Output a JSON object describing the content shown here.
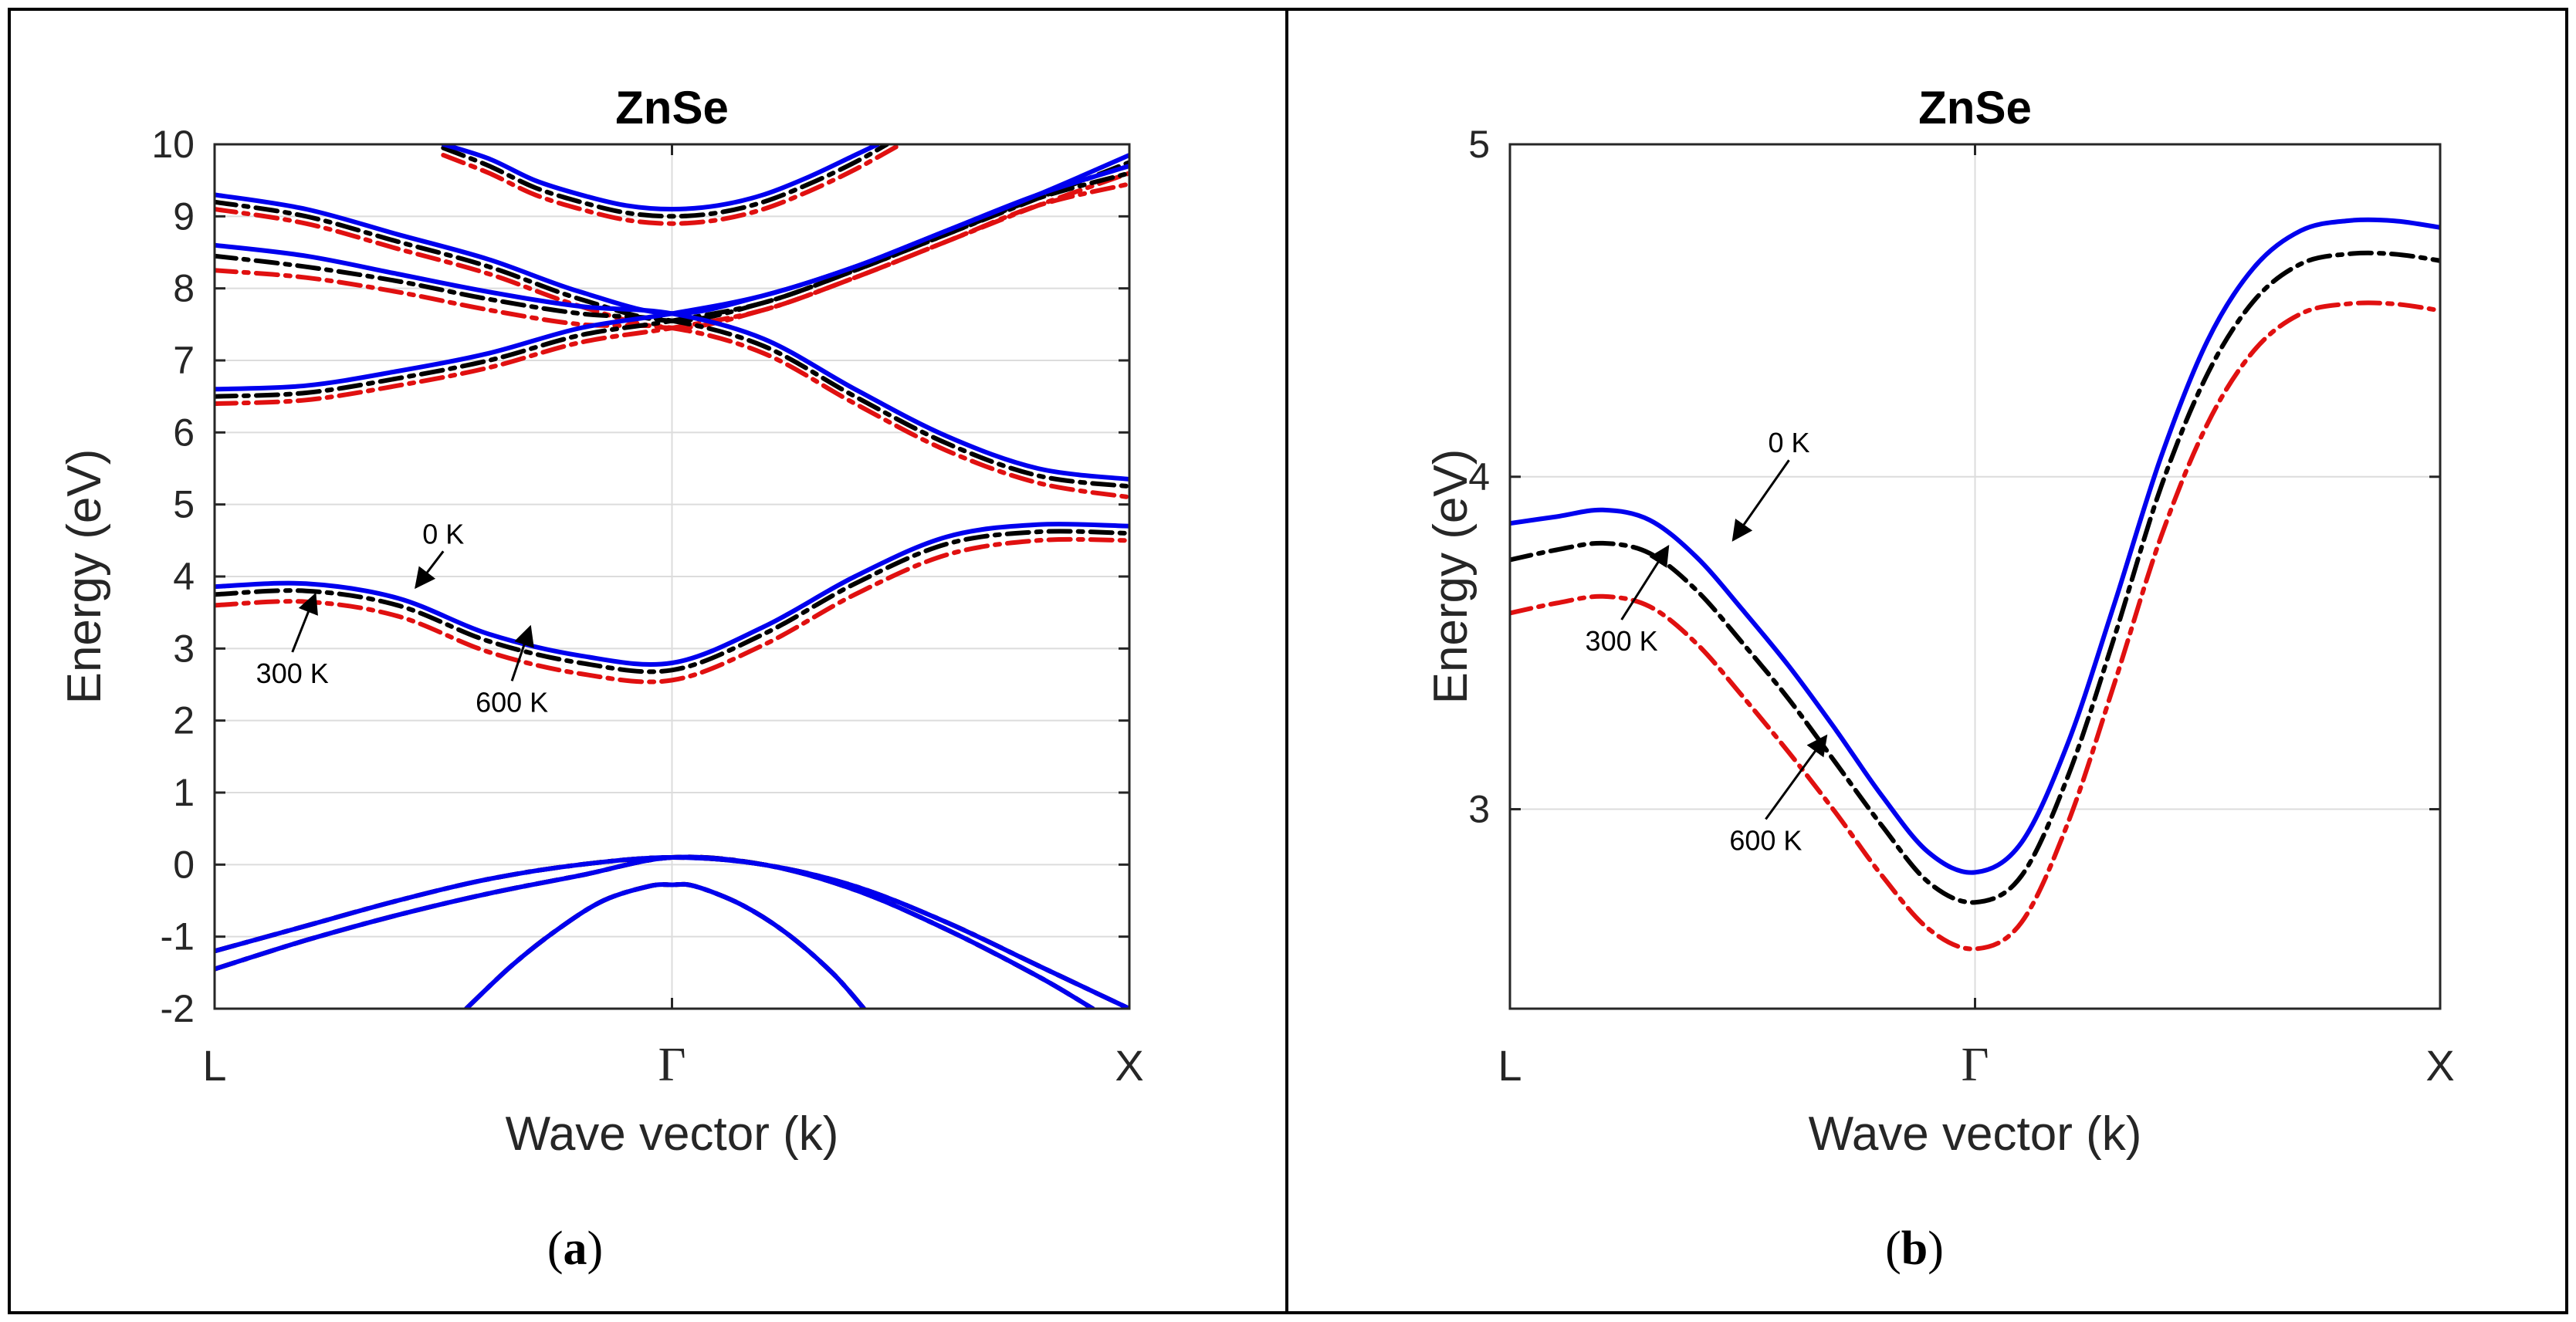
{
  "panels": [
    {
      "id": "a",
      "caption": {
        "open": "(",
        "letter": "a",
        "close": ")"
      },
      "xlabel": "Wave vector (k)"
    },
    {
      "id": "b",
      "caption": {
        "open": "(",
        "letter": "b",
        "close": ")"
      },
      "xlabel": "Wave vector (k)"
    }
  ],
  "colors": {
    "t0": "#0000ee",
    "t300": "#000000",
    "t600": "#e01010",
    "grid": "#dcdcdc",
    "axis": "#262626"
  },
  "chart_data": [
    {
      "type": "line",
      "title": "ZnSe",
      "xlabel": "Wave vector (k)",
      "ylabel": "Energy (eV)",
      "xlim": [
        0,
        2
      ],
      "ylim": [
        -2,
        10
      ],
      "xticks": [
        0,
        1,
        2
      ],
      "xticklabels": [
        "L",
        "Γ",
        "X"
      ],
      "yticks": [
        -2,
        -1,
        0,
        1,
        2,
        3,
        4,
        5,
        6,
        7,
        8,
        9,
        10
      ],
      "yticklabels": [
        "-2",
        "-1",
        "0",
        "1",
        "2",
        "3",
        "4",
        "5",
        "6",
        "7",
        "8",
        "9",
        "10"
      ],
      "grid": true,
      "series": [
        {
          "name": "0 K",
          "bands": [
            {
              "x": [
                0,
                0.2,
                0.4,
                0.6,
                0.8,
                1.0,
                1.2,
                1.4,
                1.6,
                1.8,
                2.0
              ],
              "y": [
                3.86,
                3.9,
                3.7,
                3.2,
                2.9,
                2.8,
                3.3,
                4.0,
                4.55,
                4.72,
                4.7
              ]
            },
            {
              "x": [
                0,
                0.2,
                0.4,
                0.6,
                0.8,
                1.0,
                1.2,
                1.4,
                1.6,
                1.8,
                2.0
              ],
              "y": [
                6.6,
                6.65,
                6.85,
                7.1,
                7.45,
                7.65,
                7.9,
                8.3,
                8.8,
                9.3,
                9.85
              ]
            },
            {
              "x": [
                0,
                0.2,
                0.4,
                0.6,
                0.8,
                1.0,
                1.2,
                1.4,
                1.6,
                1.8,
                2.0
              ],
              "y": [
                8.6,
                8.45,
                8.2,
                7.95,
                7.75,
                7.65,
                7.3,
                6.6,
                5.95,
                5.5,
                5.35
              ]
            },
            {
              "x": [
                0,
                0.2,
                0.4,
                0.6,
                0.8,
                1.0,
                1.2,
                1.4,
                1.6,
                1.8,
                2.0
              ],
              "y": [
                9.3,
                9.1,
                8.75,
                8.4,
                7.95,
                7.65,
                7.9,
                8.3,
                8.8,
                9.3,
                9.7
              ]
            },
            {
              "x": [
                0.5,
                0.6,
                0.7,
                0.8,
                0.9,
                1.0,
                1.1,
                1.2,
                1.3,
                1.4,
                1.45
              ],
              "y": [
                10.0,
                9.8,
                9.5,
                9.3,
                9.15,
                9.1,
                9.15,
                9.3,
                9.55,
                9.85,
                10.0
              ]
            },
            {
              "x": [
                0,
                0.2,
                0.4,
                0.6,
                0.8,
                1.0,
                1.2,
                1.4,
                1.6,
                1.8,
                2.0
              ],
              "y": [
                -1.2,
                -0.85,
                -0.5,
                -0.2,
                0.0,
                0.1,
                0.0,
                -0.3,
                -0.8,
                -1.4,
                -2.0
              ]
            },
            {
              "x": [
                0,
                0.2,
                0.4,
                0.6,
                0.8,
                1.0,
                1.2,
                1.4,
                1.6,
                1.8,
                1.92
              ],
              "y": [
                -1.45,
                -1.05,
                -0.7,
                -0.4,
                -0.15,
                0.1,
                0.0,
                -0.35,
                -0.9,
                -1.55,
                -2.0
              ]
            },
            {
              "x": [
                0.55,
                0.65,
                0.75,
                0.85,
                0.95,
                1.0,
                1.05,
                1.15,
                1.25,
                1.35,
                1.42
              ],
              "y": [
                -2.0,
                -1.4,
                -0.9,
                -0.5,
                -0.3,
                -0.28,
                -0.3,
                -0.55,
                -0.95,
                -1.5,
                -2.0
              ]
            }
          ]
        },
        {
          "name": "300 K",
          "bands": [
            {
              "x": [
                0,
                0.2,
                0.4,
                0.6,
                0.8,
                1.0,
                1.2,
                1.4,
                1.6,
                1.8,
                2.0
              ],
              "y": [
                3.75,
                3.8,
                3.6,
                3.1,
                2.8,
                2.7,
                3.2,
                3.9,
                4.45,
                4.62,
                4.6
              ]
            },
            {
              "x": [
                0,
                0.2,
                0.4,
                0.6,
                0.8,
                1.0,
                1.2,
                1.4,
                1.6,
                1.8,
                2.0
              ],
              "y": [
                6.5,
                6.55,
                6.75,
                7.0,
                7.35,
                7.55,
                7.8,
                8.25,
                8.75,
                9.25,
                9.75
              ]
            },
            {
              "x": [
                0,
                0.2,
                0.4,
                0.6,
                0.8,
                1.0,
                1.2,
                1.4,
                1.6,
                1.8,
                2.0
              ],
              "y": [
                8.45,
                8.3,
                8.1,
                7.85,
                7.65,
                7.55,
                7.2,
                6.5,
                5.85,
                5.4,
                5.25
              ]
            },
            {
              "x": [
                0,
                0.2,
                0.4,
                0.6,
                0.8,
                1.0,
                1.2,
                1.4,
                1.6,
                1.8,
                2.0
              ],
              "y": [
                9.2,
                9.0,
                8.65,
                8.3,
                7.85,
                7.55,
                7.8,
                8.25,
                8.75,
                9.25,
                9.6
              ]
            },
            {
              "x": [
                0.5,
                0.6,
                0.7,
                0.8,
                0.9,
                1.0,
                1.1,
                1.2,
                1.3,
                1.4,
                1.47
              ],
              "y": [
                9.95,
                9.7,
                9.4,
                9.2,
                9.05,
                9.0,
                9.05,
                9.2,
                9.45,
                9.75,
                10.0
              ]
            },
            {
              "x": [
                0,
                0.2,
                0.4,
                0.6,
                0.8,
                1.0,
                1.2,
                1.4,
                1.6,
                1.8,
                2.0
              ],
              "y": [
                -1.2,
                -0.85,
                -0.5,
                -0.2,
                0.0,
                0.1,
                0.0,
                -0.3,
                -0.8,
                -1.4,
                -2.0
              ]
            },
            {
              "x": [
                0,
                0.2,
                0.4,
                0.6,
                0.8,
                1.0,
                1.2,
                1.4,
                1.6,
                1.8,
                1.92
              ],
              "y": [
                -1.45,
                -1.05,
                -0.7,
                -0.4,
                -0.15,
                0.1,
                0.0,
                -0.35,
                -0.9,
                -1.55,
                -2.0
              ]
            },
            {
              "x": [
                0.55,
                0.65,
                0.75,
                0.85,
                0.95,
                1.0,
                1.05,
                1.15,
                1.25,
                1.35,
                1.42
              ],
              "y": [
                -2.0,
                -1.4,
                -0.9,
                -0.5,
                -0.3,
                -0.28,
                -0.3,
                -0.55,
                -0.95,
                -1.5,
                -2.0
              ]
            }
          ]
        },
        {
          "name": "600 K",
          "bands": [
            {
              "x": [
                0,
                0.2,
                0.4,
                0.6,
                0.8,
                1.0,
                1.2,
                1.4,
                1.6,
                1.8,
                2.0
              ],
              "y": [
                3.6,
                3.65,
                3.45,
                2.95,
                2.65,
                2.56,
                3.05,
                3.75,
                4.3,
                4.5,
                4.5
              ]
            },
            {
              "x": [
                0,
                0.2,
                0.4,
                0.6,
                0.8,
                1.0,
                1.2,
                1.4,
                1.6,
                1.8,
                2.0
              ],
              "y": [
                6.4,
                6.45,
                6.65,
                6.9,
                7.25,
                7.45,
                7.7,
                8.15,
                8.65,
                9.15,
                9.6
              ]
            },
            {
              "x": [
                0,
                0.2,
                0.4,
                0.6,
                0.8,
                1.0,
                1.2,
                1.4,
                1.6,
                1.8,
                2.0
              ],
              "y": [
                8.25,
                8.15,
                7.95,
                7.7,
                7.5,
                7.45,
                7.1,
                6.4,
                5.75,
                5.3,
                5.1
              ]
            },
            {
              "x": [
                0,
                0.2,
                0.4,
                0.6,
                0.8,
                1.0,
                1.2,
                1.4,
                1.6,
                1.8,
                2.0
              ],
              "y": [
                9.1,
                8.9,
                8.55,
                8.2,
                7.75,
                7.45,
                7.7,
                8.15,
                8.65,
                9.15,
                9.45
              ]
            },
            {
              "x": [
                0.5,
                0.6,
                0.7,
                0.8,
                0.9,
                1.0,
                1.1,
                1.2,
                1.3,
                1.4,
                1.5
              ],
              "y": [
                9.85,
                9.6,
                9.3,
                9.1,
                8.95,
                8.9,
                8.95,
                9.1,
                9.35,
                9.65,
                10.0
              ]
            },
            {
              "x": [
                0,
                0.2,
                0.4,
                0.6,
                0.8,
                1.0,
                1.2,
                1.4,
                1.6,
                1.8,
                2.0
              ],
              "y": [
                -1.2,
                -0.85,
                -0.5,
                -0.2,
                0.0,
                0.1,
                0.0,
                -0.3,
                -0.8,
                -1.4,
                -2.0
              ]
            },
            {
              "x": [
                0,
                0.2,
                0.4,
                0.6,
                0.8,
                1.0,
                1.2,
                1.4,
                1.6,
                1.8,
                1.92
              ],
              "y": [
                -1.45,
                -1.05,
                -0.7,
                -0.4,
                -0.15,
                0.1,
                0.0,
                -0.35,
                -0.9,
                -1.55,
                -2.0
              ]
            },
            {
              "x": [
                0.55,
                0.65,
                0.75,
                0.85,
                0.95,
                1.0,
                1.05,
                1.15,
                1.25,
                1.35,
                1.42
              ],
              "y": [
                -2.0,
                -1.4,
                -0.9,
                -0.5,
                -0.3,
                -0.28,
                -0.3,
                -0.55,
                -0.95,
                -1.5,
                -2.0
              ]
            }
          ]
        }
      ],
      "annotations": [
        {
          "text": "0 K",
          "point": [
            0.44,
            3.85
          ],
          "from": [
            0.5,
            4.35
          ]
        },
        {
          "text": "300 K",
          "point": [
            0.22,
            3.75
          ],
          "from": [
            0.17,
            2.95
          ]
        },
        {
          "text": "600 K",
          "point": [
            0.69,
            3.3
          ],
          "from": [
            0.65,
            2.55
          ]
        }
      ]
    },
    {
      "type": "line",
      "title": "ZnSe",
      "xlabel": "Wave vector (k)",
      "ylabel": "Energy (eV)",
      "xlim": [
        0,
        2
      ],
      "ylim": [
        2.4,
        5.0
      ],
      "xticks": [
        0,
        1,
        2
      ],
      "xticklabels": [
        "L",
        "Γ",
        "X"
      ],
      "yticks": [
        3,
        4,
        5
      ],
      "yticklabels": [
        "3",
        "4",
        "5"
      ],
      "grid": true,
      "series": [
        {
          "name": "0 K",
          "x": [
            0,
            0.1,
            0.2,
            0.3,
            0.4,
            0.5,
            0.6,
            0.7,
            0.8,
            0.9,
            1.0,
            1.1,
            1.2,
            1.3,
            1.4,
            1.5,
            1.6,
            1.7,
            1.8,
            1.9,
            2.0
          ],
          "y": [
            3.86,
            3.88,
            3.9,
            3.87,
            3.76,
            3.6,
            3.43,
            3.24,
            3.04,
            2.87,
            2.81,
            2.9,
            3.2,
            3.62,
            4.06,
            4.41,
            4.63,
            4.74,
            4.77,
            4.77,
            4.75
          ]
        },
        {
          "name": "300 K",
          "x": [
            0,
            0.1,
            0.2,
            0.3,
            0.4,
            0.5,
            0.6,
            0.7,
            0.8,
            0.9,
            1.0,
            1.1,
            1.2,
            1.3,
            1.4,
            1.5,
            1.6,
            1.7,
            1.8,
            1.9,
            2.0
          ],
          "y": [
            3.75,
            3.78,
            3.8,
            3.77,
            3.66,
            3.5,
            3.33,
            3.14,
            2.95,
            2.78,
            2.72,
            2.8,
            3.1,
            3.52,
            3.97,
            4.31,
            4.53,
            4.64,
            4.67,
            4.67,
            4.65
          ]
        },
        {
          "name": "600 K",
          "x": [
            0,
            0.1,
            0.2,
            0.3,
            0.4,
            0.5,
            0.6,
            0.7,
            0.8,
            0.9,
            1.0,
            1.1,
            1.2,
            1.3,
            1.4,
            1.5,
            1.6,
            1.7,
            1.8,
            1.9,
            2.0
          ],
          "y": [
            3.59,
            3.62,
            3.64,
            3.61,
            3.5,
            3.34,
            3.17,
            2.99,
            2.8,
            2.64,
            2.58,
            2.66,
            2.96,
            3.38,
            3.82,
            4.16,
            4.38,
            4.49,
            4.52,
            4.52,
            4.5
          ]
        }
      ],
      "annotations": [
        {
          "text": "0 K",
          "point": [
            0.48,
            3.81
          ],
          "from": [
            0.6,
            4.05
          ]
        },
        {
          "text": "300 K",
          "point": [
            0.34,
            3.79
          ],
          "from": [
            0.24,
            3.57
          ]
        },
        {
          "text": "600 K",
          "point": [
            0.68,
            3.22
          ],
          "from": [
            0.55,
            2.97
          ]
        }
      ]
    }
  ]
}
